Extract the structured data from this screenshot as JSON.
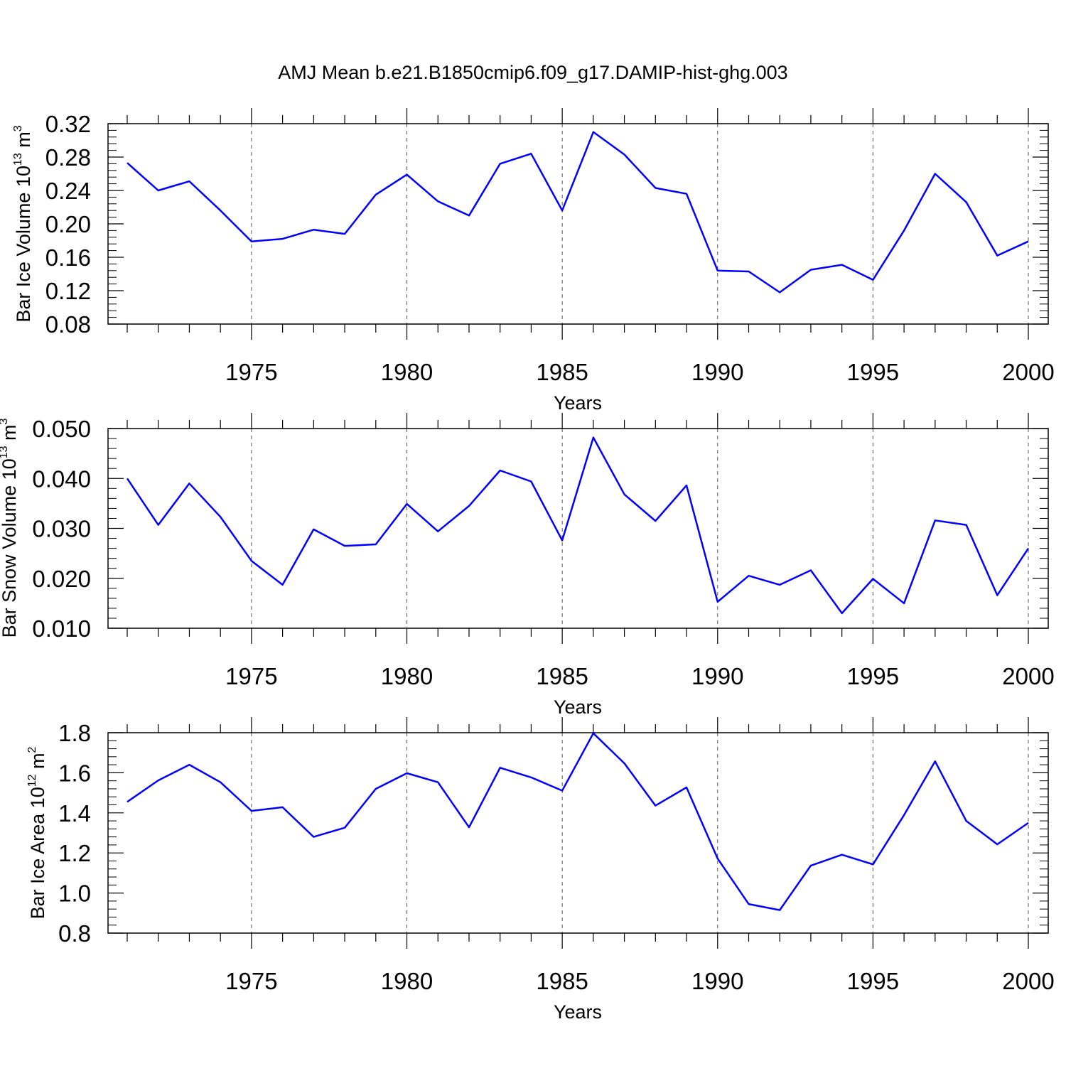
{
  "title": "AMJ Mean b.e21.B1850cmip6.f09_g17.DAMIP-hist-ghg.003",
  "colors": {
    "line": "#0000ff",
    "axis": "#000000",
    "grid": "#555555"
  },
  "chart_data": [
    {
      "type": "line",
      "title": "",
      "xlabel": "Years",
      "ylabel": {
        "base": "Bar Ice Volume 10",
        "exponent": "13",
        "unit": " m",
        "unit_exponent": "3"
      },
      "xlim": [
        1971,
        2000
      ],
      "ylim": [
        0.08,
        0.32
      ],
      "x_ticks": [
        "1975",
        "1980",
        "1985",
        "1990",
        "1995",
        "2000"
      ],
      "y_ticks": [
        "0.08",
        "0.12",
        "0.16",
        "0.20",
        "0.24",
        "0.28",
        "0.32"
      ],
      "grid": "vertical dashed at labeled x ticks",
      "x": [
        1971,
        1972,
        1973,
        1974,
        1975,
        1976,
        1977,
        1978,
        1979,
        1980,
        1981,
        1982,
        1983,
        1984,
        1985,
        1986,
        1987,
        1988,
        1989,
        1990,
        1991,
        1992,
        1993,
        1994,
        1995,
        1996,
        1997,
        1998,
        1999,
        2000
      ],
      "values": [
        0.273,
        0.24,
        0.251,
        0.216,
        0.179,
        0.182,
        0.193,
        0.188,
        0.235,
        0.259,
        0.227,
        0.21,
        0.272,
        0.284,
        0.216,
        0.31,
        0.283,
        0.243,
        0.236,
        0.144,
        0.143,
        0.118,
        0.145,
        0.151,
        0.133,
        0.192,
        0.26,
        0.226,
        0.162,
        0.179
      ]
    },
    {
      "type": "line",
      "title": "",
      "xlabel": "Years",
      "ylabel": {
        "base": "Bar Snow Volume 10",
        "exponent": "13",
        "unit": " m",
        "unit_exponent": "3"
      },
      "xlim": [
        1971,
        2000
      ],
      "ylim": [
        0.01,
        0.05
      ],
      "x_ticks": [
        "1975",
        "1980",
        "1985",
        "1990",
        "1995",
        "2000"
      ],
      "y_ticks": [
        "0.010",
        "0.020",
        "0.030",
        "0.040",
        "0.050"
      ],
      "grid": "vertical dashed at labeled x ticks",
      "x": [
        1971,
        1972,
        1973,
        1974,
        1975,
        1976,
        1977,
        1978,
        1979,
        1980,
        1981,
        1982,
        1983,
        1984,
        1985,
        1986,
        1987,
        1988,
        1989,
        1990,
        1991,
        1992,
        1993,
        1994,
        1995,
        1996,
        1997,
        1998,
        1999,
        2000
      ],
      "values": [
        0.04,
        0.0307,
        0.039,
        0.0323,
        0.0235,
        0.0187,
        0.0298,
        0.0265,
        0.0268,
        0.0349,
        0.0294,
        0.0345,
        0.0416,
        0.0394,
        0.0276,
        0.0482,
        0.0368,
        0.0315,
        0.0386,
        0.0153,
        0.0205,
        0.0187,
        0.0216,
        0.013,
        0.0199,
        0.015,
        0.0316,
        0.0307,
        0.0166,
        0.026
      ]
    },
    {
      "type": "line",
      "title": "",
      "xlabel": "Years",
      "ylabel": {
        "base": "Bar Ice Area 10",
        "exponent": "12",
        "unit": " m",
        "unit_exponent": "2"
      },
      "xlim": [
        1971,
        2000
      ],
      "ylim": [
        0.8,
        1.8
      ],
      "x_ticks": [
        "1975",
        "1980",
        "1985",
        "1990",
        "1995",
        "2000"
      ],
      "y_ticks": [
        "0.8",
        "1.0",
        "1.2",
        "1.4",
        "1.6",
        "1.8"
      ],
      "grid": "vertical dashed at labeled x ticks",
      "x": [
        1971,
        1972,
        1973,
        1974,
        1975,
        1976,
        1977,
        1978,
        1979,
        1980,
        1981,
        1982,
        1983,
        1984,
        1985,
        1986,
        1987,
        1988,
        1989,
        1990,
        1991,
        1992,
        1993,
        1994,
        1995,
        1996,
        1997,
        1998,
        1999,
        2000
      ],
      "values": [
        1.455,
        1.562,
        1.64,
        1.553,
        1.41,
        1.428,
        1.28,
        1.326,
        1.52,
        1.598,
        1.553,
        1.328,
        1.625,
        1.577,
        1.511,
        1.797,
        1.647,
        1.436,
        1.527,
        1.172,
        0.945,
        0.915,
        1.137,
        1.191,
        1.143,
        1.389,
        1.657,
        1.36,
        1.243,
        1.35
      ]
    }
  ]
}
